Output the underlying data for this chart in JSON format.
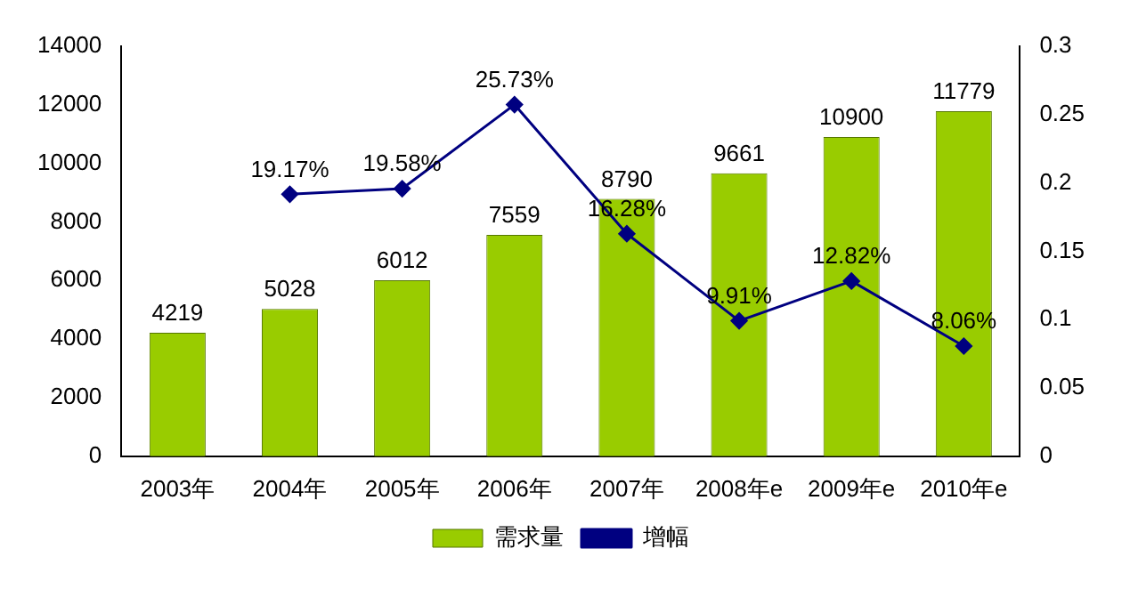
{
  "chart_data": {
    "type": "bar",
    "categories": [
      "2003年",
      "2004年",
      "2005年",
      "2006年",
      "2007年",
      "2008年e",
      "2009年e",
      "2010年e"
    ],
    "series": [
      {
        "name": "需求量",
        "color": "#99cc00",
        "values": [
          4219,
          5028,
          6012,
          7559,
          8790,
          9661,
          10900,
          11779
        ]
      },
      {
        "name": "增幅",
        "type": "line",
        "axis": "y2",
        "color": "#000080",
        "marker": "diamond",
        "values": [
          null,
          0.1917,
          0.1958,
          0.2573,
          0.1628,
          0.0991,
          0.1282,
          0.0806
        ],
        "value_labels": [
          null,
          "19.17%",
          "19.58%",
          "25.73%",
          "16.28%",
          "9.91%",
          "12.82%",
          "8.06%"
        ]
      }
    ],
    "ylim": [
      0,
      14000
    ],
    "yticks": [
      0,
      2000,
      4000,
      6000,
      8000,
      10000,
      12000,
      14000
    ],
    "y2lim": [
      0,
      0.3
    ],
    "y2ticks": [
      0,
      0.05,
      0.1,
      0.15,
      0.2,
      0.25,
      0.3
    ],
    "data_labels": true,
    "legend": "bottom",
    "grid": false
  }
}
